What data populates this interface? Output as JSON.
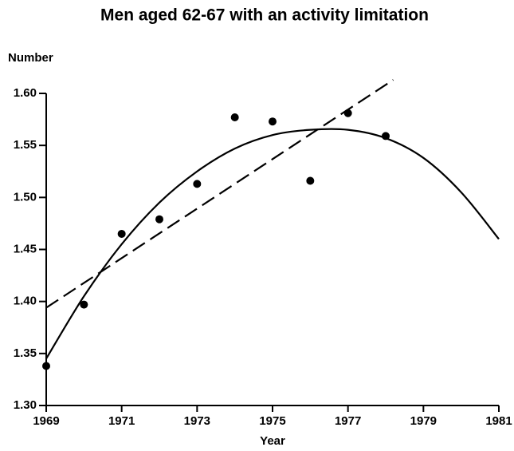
{
  "chart_data": {
    "type": "scatter",
    "title": "Men aged 62-67 with an activity  limitation",
    "y_label": "Number",
    "x_label": "Year",
    "xlim": [
      1969,
      1981
    ],
    "xticks": [
      1969,
      1971,
      1973,
      1975,
      1977,
      1979,
      1981
    ],
    "ylim": [
      1.3,
      1.6
    ],
    "yticks": [
      {
        "value": 1.3,
        "label": "1.30"
      },
      1.35,
      {
        "value": 1.4,
        "label": "1.40"
      },
      1.45,
      {
        "value": 1.5,
        "label": "1.50"
      },
      1.55,
      {
        "value": 1.6,
        "label": "1.60"
      }
    ],
    "series": [
      {
        "kind": "scatter",
        "color": "#000000",
        "x": [
          1969,
          1970,
          1971,
          1972,
          1973,
          1974,
          1975,
          1976,
          1977,
          1978
        ],
        "values": [
          1.338,
          1.397,
          1.465,
          1.479,
          1.513,
          1.577,
          1.573,
          1.516,
          1.581,
          1.559
        ]
      },
      {
        "kind": "line",
        "dashed": false,
        "color": "#000000",
        "x": [
          1969,
          1970,
          1971,
          1972,
          1973,
          1974,
          1975,
          1976,
          1977,
          1978,
          1979,
          1980,
          1981
        ],
        "values": [
          1.345,
          1.405,
          1.455,
          1.495,
          1.525,
          1.547,
          1.56,
          1.565,
          1.565,
          1.557,
          1.538,
          1.505,
          1.46
        ]
      },
      {
        "kind": "line",
        "dashed": true,
        "color": "#000000",
        "x": [
          1969,
          1978.2
        ],
        "values": [
          1.394,
          1.613
        ]
      }
    ]
  }
}
